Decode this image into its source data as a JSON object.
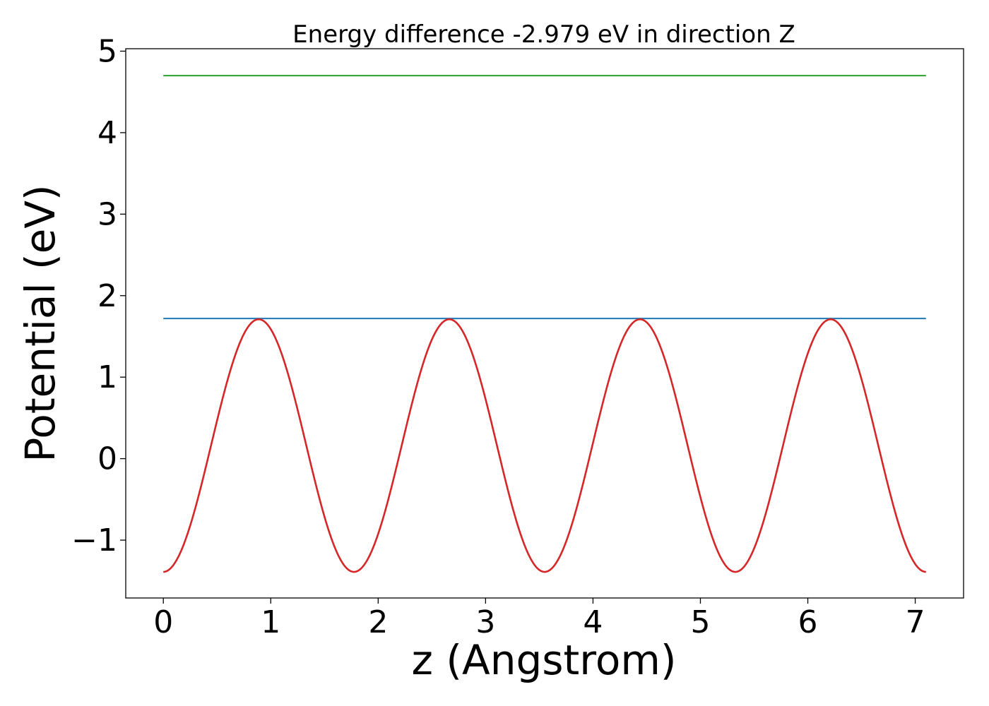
{
  "chart_data": {
    "type": "line",
    "title": "Energy difference -2.979 eV in direction Z",
    "xlabel": "z (Angstrom)",
    "ylabel": "Potential (eV)",
    "xlim": [
      -0.35,
      7.45
    ],
    "ylim": [
      -1.71,
      5.03
    ],
    "xticks": [
      0,
      1,
      2,
      3,
      4,
      5,
      6,
      7
    ],
    "xtick_labels": [
      "0",
      "1",
      "2",
      "3",
      "4",
      "5",
      "6",
      "7"
    ],
    "yticks": [
      -1,
      0,
      1,
      2,
      3,
      4,
      5
    ],
    "ytick_labels": [
      "−1",
      "0",
      "1",
      "2",
      "3",
      "4",
      "5"
    ],
    "grid": false,
    "legend": "none",
    "series": [
      {
        "color": "#2ca02c",
        "style": "horizontal",
        "x": [
          0,
          7.1
        ],
        "y": [
          4.7,
          4.7
        ]
      },
      {
        "color": "#1f77b4",
        "style": "horizontal",
        "x": [
          0,
          7.1
        ],
        "y": [
          1.72,
          1.72
        ]
      },
      {
        "color": "#d62728",
        "style": "periodic",
        "x_range": [
          0,
          7.1
        ],
        "period": 1.775,
        "min": -1.39,
        "max": 1.71,
        "peaks": [
          0.89,
          2.665,
          4.44,
          6.215
        ],
        "troughs": [
          0,
          1.775,
          3.55,
          5.325,
          7.1
        ]
      }
    ]
  }
}
